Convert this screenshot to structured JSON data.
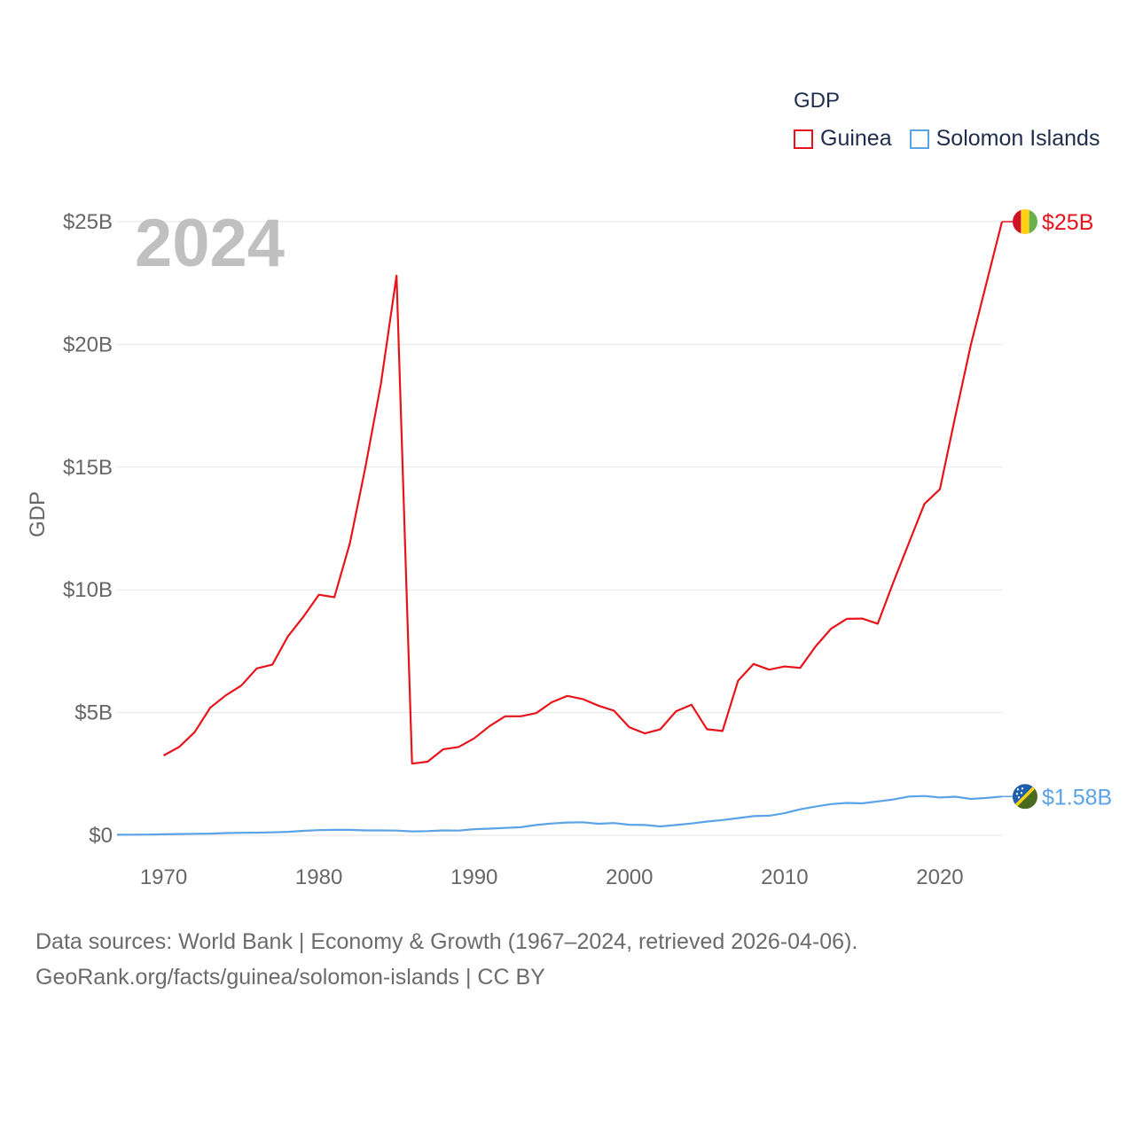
{
  "chart_data": {
    "type": "line",
    "title": "GDP",
    "ylabel": "GDP",
    "xlabel": "",
    "current_year": "2024",
    "xlim": [
      1967,
      2024
    ],
    "ylim": [
      0,
      25000000000
    ],
    "x_ticks": [
      1970,
      1980,
      1990,
      2000,
      2010,
      2020
    ],
    "y_ticks": [
      {
        "value": 0,
        "label": "$0"
      },
      {
        "value": 5000000000,
        "label": "$5B"
      },
      {
        "value": 10000000000,
        "label": "$10B"
      },
      {
        "value": 15000000000,
        "label": "$15B"
      },
      {
        "value": 20000000000,
        "label": "$20B"
      },
      {
        "value": 25000000000,
        "label": "$25B"
      }
    ],
    "legend_position": "top-right",
    "grid": true,
    "series": [
      {
        "name": "Guinea",
        "color": "#e8141b",
        "end_label": "$25B",
        "flag": "guinea",
        "x": [
          1970,
          1971,
          1972,
          1973,
          1974,
          1975,
          1976,
          1977,
          1978,
          1979,
          1980,
          1981,
          1982,
          1983,
          1984,
          1985,
          1986,
          1987,
          1988,
          1989,
          1990,
          1991,
          1992,
          1993,
          1994,
          1995,
          1996,
          1997,
          1998,
          1999,
          2000,
          2001,
          2002,
          2003,
          2004,
          2005,
          2006,
          2007,
          2008,
          2009,
          2010,
          2011,
          2012,
          2013,
          2014,
          2015,
          2016,
          2017,
          2018,
          2019,
          2020,
          2021,
          2022,
          2023,
          2024
        ],
        "values": [
          3250000000.0,
          3600000000.0,
          4200000000.0,
          5200000000.0,
          5700000000.0,
          6100000000.0,
          6800000000.0,
          6950000000.0,
          8100000000.0,
          8900000000.0,
          9800000000.0,
          9700000000.0,
          11900000000.0,
          15000000000.0,
          18400000000.0,
          22800000000.0,
          2920000000.0,
          3000000000.0,
          3500000000.0,
          3600000000.0,
          3950000000.0,
          4450000000.0,
          4850000000.0,
          4850000000.0,
          4980000000.0,
          5420000000.0,
          5680000000.0,
          5550000000.0,
          5280000000.0,
          5080000000.0,
          4400000000.0,
          4150000000.0,
          4320000000.0,
          5050000000.0,
          5320000000.0,
          4320000000.0,
          4250000000.0,
          6300000000.0,
          6980000000.0,
          6750000000.0,
          6880000000.0,
          6820000000.0,
          7700000000.0,
          8420000000.0,
          8820000000.0,
          8830000000.0,
          8620000000.0,
          10300000000.0,
          11900000000.0,
          13500000000.0,
          14100000000.0,
          17100000000.0,
          20000000000.0,
          22500000000.0,
          25000000000.0
        ]
      },
      {
        "name": "Solomon Islands",
        "color": "#5ba3e6",
        "end_label": "$1.58B",
        "flag": "solomon-islands",
        "x": [
          1967,
          1968,
          1969,
          1970,
          1971,
          1972,
          1973,
          1974,
          1975,
          1976,
          1977,
          1978,
          1979,
          1980,
          1981,
          1982,
          1983,
          1984,
          1985,
          1986,
          1987,
          1988,
          1989,
          1990,
          1991,
          1992,
          1993,
          1994,
          1995,
          1996,
          1997,
          1998,
          1999,
          2000,
          2001,
          2002,
          2003,
          2004,
          2005,
          2006,
          2007,
          2008,
          2009,
          2010,
          2011,
          2012,
          2013,
          2014,
          2015,
          2016,
          2017,
          2018,
          2019,
          2020,
          2021,
          2022,
          2023,
          2024
        ],
        "values": [
          20000000.0,
          25000000.0,
          30000000.0,
          40000000.0,
          50000000.0,
          60000000.0,
          70000000.0,
          90000000.0,
          100000000.0,
          110000000.0,
          120000000.0,
          140000000.0,
          180000000.0,
          210000000.0,
          220000000.0,
          220000000.0,
          200000000.0,
          200000000.0,
          190000000.0,
          160000000.0,
          170000000.0,
          200000000.0,
          190000000.0,
          250000000.0,
          270000000.0,
          300000000.0,
          330000000.0,
          420000000.0,
          480000000.0,
          520000000.0,
          530000000.0,
          470000000.0,
          500000000.0,
          430000000.0,
          420000000.0,
          360000000.0,
          420000000.0,
          480000000.0,
          560000000.0,
          620000000.0,
          700000000.0,
          780000000.0,
          800000000.0,
          900000000.0,
          1060000000.0,
          1170000000.0,
          1270000000.0,
          1320000000.0,
          1300000000.0,
          1380000000.0,
          1460000000.0,
          1580000000.0,
          1600000000.0,
          1540000000.0,
          1570000000.0,
          1480000000.0,
          1520000000.0,
          1580000000.0
        ]
      }
    ]
  },
  "legend": {
    "title": "GDP",
    "items": [
      "Guinea",
      "Solomon Islands"
    ],
    "colors": [
      "#e8141b",
      "#5ba3e6"
    ]
  },
  "footer": {
    "line1": "Data sources: World Bank | Economy & Growth (1967–2024, retrieved 2026-04-06).",
    "line2": "GeoRank.org/facts/guinea/solomon-islands | CC BY"
  }
}
